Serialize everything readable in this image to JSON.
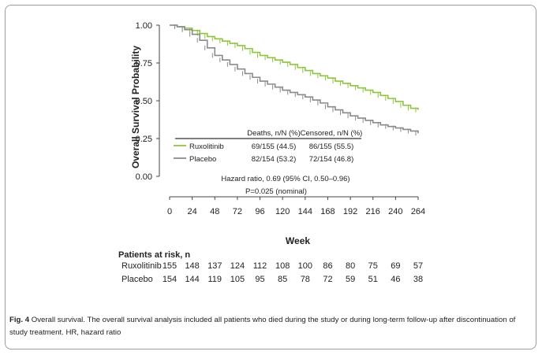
{
  "chart_data": {
    "type": "line",
    "ylabel": "Overall Survival Probability",
    "xlabel": "Week",
    "xlim": [
      0,
      264
    ],
    "ylim": [
      0,
      1
    ],
    "x_ticks": [
      0,
      24,
      48,
      72,
      96,
      120,
      144,
      168,
      192,
      216,
      240,
      264
    ],
    "y_ticks": [
      "0.00",
      "0.25",
      "0.50",
      "0.75",
      "1.00"
    ],
    "series": [
      {
        "name": "Ruxolitinib",
        "color": "#8dc63f",
        "points": [
          [
            0,
            1.0
          ],
          [
            8,
            0.99
          ],
          [
            16,
            0.98
          ],
          [
            24,
            0.965
          ],
          [
            32,
            0.945
          ],
          [
            40,
            0.925
          ],
          [
            48,
            0.91
          ],
          [
            56,
            0.895
          ],
          [
            64,
            0.88
          ],
          [
            72,
            0.865
          ],
          [
            80,
            0.845
          ],
          [
            88,
            0.82
          ],
          [
            96,
            0.8
          ],
          [
            104,
            0.785
          ],
          [
            112,
            0.77
          ],
          [
            120,
            0.755
          ],
          [
            128,
            0.74
          ],
          [
            136,
            0.72
          ],
          [
            144,
            0.7
          ],
          [
            152,
            0.68
          ],
          [
            160,
            0.665
          ],
          [
            168,
            0.65
          ],
          [
            176,
            0.63
          ],
          [
            184,
            0.615
          ],
          [
            192,
            0.6
          ],
          [
            200,
            0.585
          ],
          [
            208,
            0.57
          ],
          [
            216,
            0.555
          ],
          [
            224,
            0.535
          ],
          [
            232,
            0.515
          ],
          [
            240,
            0.495
          ],
          [
            248,
            0.47
          ],
          [
            256,
            0.45
          ],
          [
            264,
            0.44
          ]
        ]
      },
      {
        "name": "Placebo",
        "color": "#8a8a8a",
        "points": [
          [
            0,
            1.0
          ],
          [
            8,
            0.99
          ],
          [
            16,
            0.97
          ],
          [
            24,
            0.94
          ],
          [
            32,
            0.9
          ],
          [
            40,
            0.85
          ],
          [
            48,
            0.8
          ],
          [
            56,
            0.77
          ],
          [
            64,
            0.74
          ],
          [
            72,
            0.71
          ],
          [
            80,
            0.68
          ],
          [
            88,
            0.655
          ],
          [
            96,
            0.63
          ],
          [
            104,
            0.61
          ],
          [
            112,
            0.59
          ],
          [
            120,
            0.57
          ],
          [
            128,
            0.555
          ],
          [
            136,
            0.54
          ],
          [
            144,
            0.525
          ],
          [
            152,
            0.505
          ],
          [
            160,
            0.485
          ],
          [
            168,
            0.46
          ],
          [
            176,
            0.44
          ],
          [
            184,
            0.42
          ],
          [
            192,
            0.4
          ],
          [
            200,
            0.385
          ],
          [
            208,
            0.37
          ],
          [
            216,
            0.355
          ],
          [
            224,
            0.34
          ],
          [
            232,
            0.33
          ],
          [
            240,
            0.32
          ],
          [
            248,
            0.31
          ],
          [
            256,
            0.3
          ],
          [
            264,
            0.285
          ]
        ]
      }
    ],
    "legend_table": {
      "col_deaths": "Deaths, n/N (%)",
      "col_censored": "Censored, n/N (%)",
      "rows": [
        {
          "label": "Ruxolitinib",
          "deaths": "69/155 (44.5)",
          "censored": "86/155 (55.5)"
        },
        {
          "label": "Placebo",
          "deaths": "82/154 (53.2)",
          "censored": "72/154 (46.8)"
        }
      ],
      "hazard": "Hazard ratio, 0.69 (95% CI, 0.50–0.96)",
      "pvalue": "P=0.025 (nominal)"
    }
  },
  "at_risk": {
    "title": "Patients at risk, n",
    "rows": [
      {
        "label": "Ruxolitinib",
        "values": [
          "155",
          "148",
          "137",
          "124",
          "112",
          "108",
          "100",
          "86",
          "80",
          "75",
          "69",
          "57"
        ]
      },
      {
        "label": "Placebo",
        "values": [
          "154",
          "144",
          "119",
          "105",
          "95",
          "85",
          "78",
          "72",
          "59",
          "51",
          "46",
          "38"
        ]
      }
    ]
  },
  "caption": {
    "fig": "Fig. 4",
    "text": "Overall survival. The overall survival analysis included all patients who died during the study or during long-term follow-up after discontinuation of study treatment. HR, hazard ratio"
  }
}
